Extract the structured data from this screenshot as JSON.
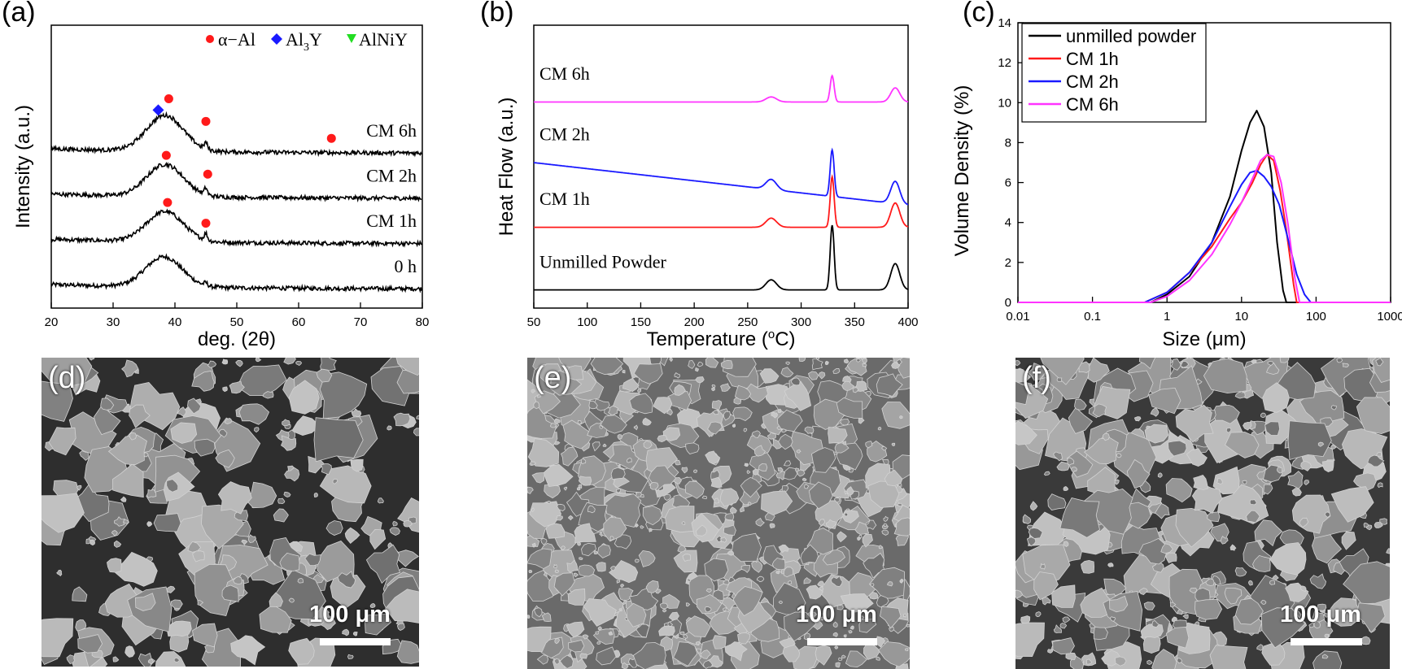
{
  "panels": {
    "a": "(a)",
    "b": "(b)",
    "c": "(c)",
    "d": "(d)",
    "e": "(e)",
    "f": "(f)"
  },
  "chart_data": [
    {
      "id": "a",
      "type": "line",
      "title": "",
      "xlabel": "deg. (2θ)",
      "ylabel": "Intensity (a.u.)",
      "xlim": [
        20,
        80
      ],
      "xticks": [
        20,
        30,
        40,
        50,
        60,
        70,
        80
      ],
      "legend": [
        {
          "label": "α−Al",
          "marker": "circle",
          "color": "#ff1a1a"
        },
        {
          "label": "Al",
          "sub": "3",
          "tail": "Y",
          "marker": "diamond",
          "color": "#1a1aff"
        },
        {
          "label": "AlNiY",
          "marker": "triangle-down",
          "color": "#22dd22"
        }
      ],
      "series": [
        {
          "name": "0 h",
          "offset": 0,
          "peak_pos": 38.2,
          "peak_height": 1.6
        },
        {
          "name": "CM 1h",
          "offset": 2.4,
          "peak_pos": 38.4,
          "peak_height": 1.6
        },
        {
          "name": "CM 2h",
          "offset": 4.8,
          "peak_pos": 38.4,
          "peak_height": 1.7
        },
        {
          "name": "CM 6h",
          "offset": 7.2,
          "peak_pos": 38.4,
          "peak_height": 1.9
        }
      ],
      "markers": [
        {
          "series": "CM 1h",
          "x": 38.8,
          "y": 4.6,
          "type": "alpha-Al"
        },
        {
          "series": "CM 1h",
          "x": 45.0,
          "y": 3.5,
          "type": "alpha-Al"
        },
        {
          "series": "CM 2h",
          "x": 38.6,
          "y": 7.1,
          "type": "alpha-Al"
        },
        {
          "series": "CM 2h",
          "x": 45.3,
          "y": 6.1,
          "type": "alpha-Al"
        },
        {
          "series": "CM 6h",
          "x": 39.0,
          "y": 10.1,
          "type": "alpha-Al"
        },
        {
          "series": "CM 6h",
          "x": 45.0,
          "y": 8.9,
          "type": "alpha-Al"
        },
        {
          "series": "CM 6h",
          "x": 65.3,
          "y": 8.0,
          "type": "alpha-Al"
        },
        {
          "series": "CM 6h",
          "x": 37.3,
          "y": 9.5,
          "type": "Al3Y"
        }
      ],
      "ylim": [
        -1,
        14
      ]
    },
    {
      "id": "b",
      "type": "line",
      "title": "",
      "xlabel": "Temperature (°C)",
      "ylabel": "Heat Flow (a.u.)",
      "xlim": [
        50,
        400
      ],
      "xticks": [
        50,
        100,
        150,
        200,
        250,
        300,
        350,
        400
      ],
      "ylim": [
        0,
        14
      ],
      "series": [
        {
          "name": "Unmilled Powder",
          "color": "#000000",
          "base": 0.9,
          "slope": 0.0,
          "peaks": [
            [
              272,
              0.5,
              7
            ],
            [
              329,
              3.2,
              2.6
            ],
            [
              388,
              1.3,
              6
            ]
          ]
        },
        {
          "name": "CM 1h",
          "color": "#ff1a1a",
          "base": 4.0,
          "slope": 0.0,
          "peaks": [
            [
              272,
              0.45,
              7
            ],
            [
              329,
              2.5,
              2.6
            ],
            [
              388,
              1.2,
              6
            ]
          ]
        },
        {
          "name": "CM 2h",
          "color": "#1a1aff",
          "base": 7.2,
          "slope": -0.006,
          "peaks": [
            [
              272,
              0.5,
              7
            ],
            [
              329,
              2.3,
              2.6
            ],
            [
              388,
              1.1,
              6
            ]
          ]
        },
        {
          "name": "CM 6h",
          "color": "#ff33ff",
          "base": 10.2,
          "slope": 0.0,
          "peaks": [
            [
              272,
              0.25,
              7
            ],
            [
              329,
              1.3,
              2.6
            ],
            [
              388,
              0.7,
              6
            ]
          ]
        }
      ]
    },
    {
      "id": "c",
      "type": "line",
      "title": "",
      "xlabel": "Size (μm)",
      "ylabel": "Volume Density (%)",
      "xscale": "log",
      "xlim": [
        0.01,
        1000
      ],
      "xticks": [
        0.01,
        0.1,
        1,
        10,
        100,
        1000
      ],
      "xtick_labels": [
        "0.01",
        "0.1",
        "1",
        "10",
        "100",
        "1000"
      ],
      "ylim": [
        0,
        14
      ],
      "yticks": [
        0,
        2,
        4,
        6,
        8,
        10,
        12,
        14
      ],
      "legend_position": "top-left",
      "series": [
        {
          "name": "unmilled powder",
          "color": "#000000",
          "x": [
            0.6,
            1,
            2,
            4,
            7,
            10,
            13,
            16,
            20,
            25,
            30,
            36,
            40
          ],
          "y": [
            0,
            0.4,
            1.3,
            3.0,
            5.3,
            7.6,
            9.0,
            9.6,
            8.8,
            6.5,
            3.0,
            0.6,
            0
          ]
        },
        {
          "name": "CM 1h",
          "color": "#ff1a1a",
          "x": [
            0.5,
            1,
            2,
            4,
            7,
            10,
            14,
            18,
            22,
            27,
            33,
            40,
            50,
            55
          ],
          "y": [
            0,
            0.5,
            1.5,
            2.8,
            4.2,
            5.0,
            6.0,
            6.9,
            7.4,
            7.1,
            5.6,
            3.6,
            0.9,
            0
          ]
        },
        {
          "name": "CM 2h",
          "color": "#1a1aff",
          "x": [
            0.5,
            1,
            2,
            4,
            7,
            10,
            13,
            16,
            20,
            25,
            32,
            40,
            55,
            70,
            85
          ],
          "y": [
            0,
            0.5,
            1.5,
            3.0,
            4.8,
            5.9,
            6.5,
            6.6,
            6.3,
            5.8,
            4.9,
            3.5,
            1.4,
            0.4,
            0
          ]
        },
        {
          "name": "CM 6h",
          "color": "#ff33ff",
          "x": [
            0.6,
            1,
            2,
            4,
            7,
            10,
            14,
            18,
            22,
            27,
            34,
            42,
            52,
            60
          ],
          "y": [
            0,
            0.3,
            1.1,
            2.4,
            3.9,
            5.0,
            6.2,
            7.1,
            7.4,
            7.3,
            6.0,
            3.9,
            1.2,
            0
          ]
        }
      ]
    }
  ],
  "sem": [
    {
      "id": "d",
      "label": "(d)",
      "scale": "100 μm"
    },
    {
      "id": "e",
      "label": "(e)",
      "scale": "100 μm"
    },
    {
      "id": "f",
      "label": "(f)",
      "scale": "100 μm"
    }
  ]
}
